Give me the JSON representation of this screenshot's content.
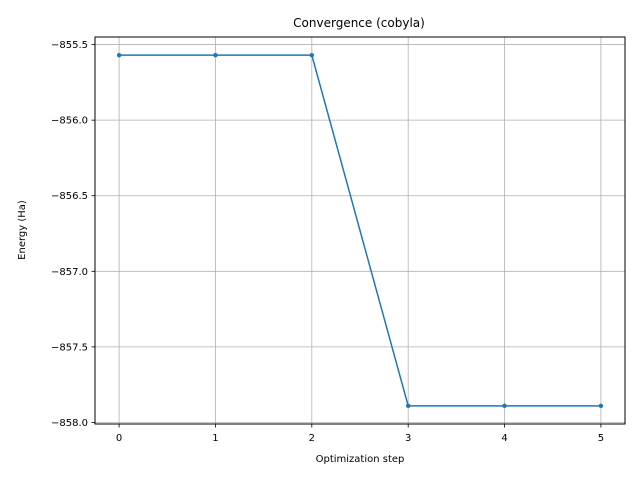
{
  "chart_data": {
    "type": "line",
    "title": "Convergence (cobyla)",
    "xlabel": "Optimization step",
    "ylabel": "Energy (Ha)",
    "x": [
      0,
      1,
      2,
      3,
      4,
      5
    ],
    "series": [
      {
        "values": [
          -855.57,
          -855.57,
          -855.57,
          -857.89,
          -857.89,
          -857.89
        ],
        "color": "#1f77b4",
        "marker": "dot"
      }
    ],
    "xlim": [
      -0.25,
      5.25
    ],
    "ylim": [
      -858.01,
      -855.45
    ],
    "xticks": [
      0,
      1,
      2,
      3,
      4,
      5
    ],
    "xtick_labels": [
      "0",
      "1",
      "2",
      "3",
      "4",
      "5"
    ],
    "yticks": [
      -855.5,
      -856.0,
      -856.5,
      -857.0,
      -857.5,
      -858.0
    ],
    "ytick_labels": [
      "−855.5",
      "−856.0",
      "−856.5",
      "−857.0",
      "−857.5",
      "−858.0"
    ],
    "grid": true
  }
}
